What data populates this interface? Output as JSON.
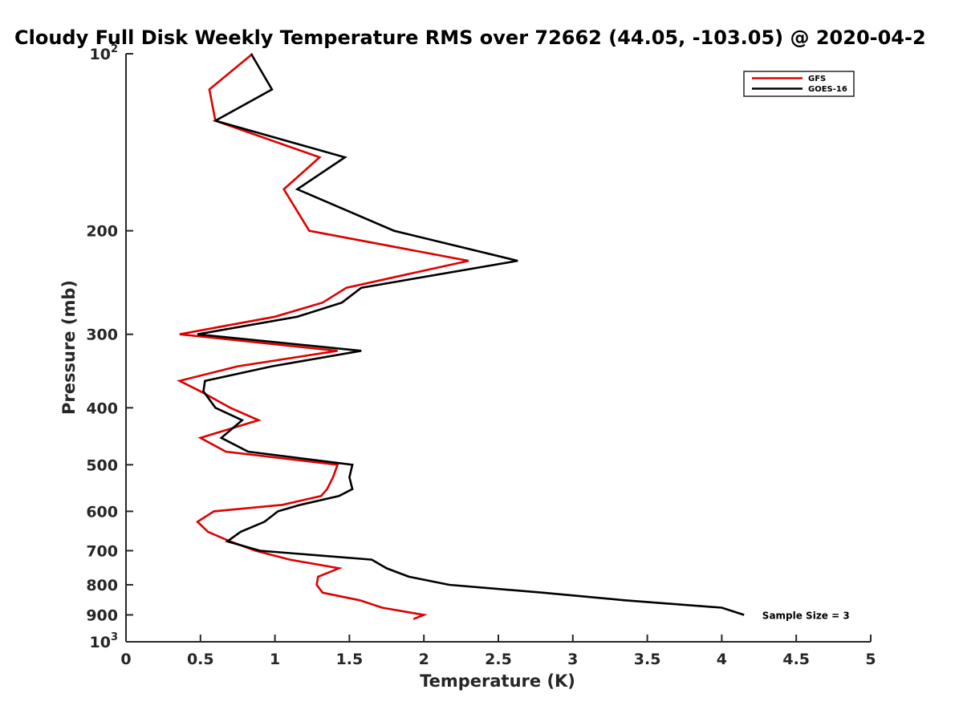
{
  "chart_data": {
    "type": "line",
    "title": "Cloudy Full Disk Weekly Temperature RMS over 72662 (44.05, -103.05) @ 2020-04-2",
    "xlabel": "Temperature (K)",
    "ylabel": "Pressure (mb)",
    "xlim": [
      0,
      5
    ],
    "ylim": [
      100,
      1000
    ],
    "y_scale": "log",
    "y_reversed": true,
    "grid": false,
    "x_ticks": [
      "0",
      "0.5",
      "1",
      "1.5",
      "2",
      "2.5",
      "3",
      "3.5",
      "4",
      "4.5",
      "5"
    ],
    "x_tick_values": [
      0,
      0.5,
      1,
      1.5,
      2,
      2.5,
      3,
      3.5,
      4,
      4.5,
      5
    ],
    "y_ticks": [
      {
        "value": 100,
        "base": "10",
        "exp": "2"
      },
      {
        "value": 200,
        "label": "200"
      },
      {
        "value": 300,
        "label": "300"
      },
      {
        "value": 400,
        "label": "400"
      },
      {
        "value": 500,
        "label": "500"
      },
      {
        "value": 600,
        "label": "600"
      },
      {
        "value": 700,
        "label": "700"
      },
      {
        "value": 800,
        "label": "800"
      },
      {
        "value": 900,
        "label": "900"
      },
      {
        "value": 1000,
        "base": "10",
        "exp": "3"
      }
    ],
    "legend_position": "top-right",
    "annotation": "Sample Size = 3",
    "annotation_anchor": {
      "x": 4.25,
      "y": 900
    },
    "series": [
      {
        "name": "GFS",
        "color": "#dd0000",
        "points": [
          [
            0.85,
            100
          ],
          [
            0.56,
            115
          ],
          [
            0.6,
            130
          ],
          [
            1.3,
            150
          ],
          [
            1.06,
            170
          ],
          [
            1.23,
            200
          ],
          [
            2.3,
            225
          ],
          [
            1.48,
            250
          ],
          [
            1.32,
            265
          ],
          [
            1.0,
            280
          ],
          [
            0.36,
            300
          ],
          [
            1.42,
            320
          ],
          [
            0.75,
            340
          ],
          [
            0.36,
            360
          ],
          [
            0.5,
            375
          ],
          [
            0.7,
            400
          ],
          [
            0.89,
            420
          ],
          [
            0.5,
            450
          ],
          [
            0.67,
            475
          ],
          [
            1.42,
            500
          ],
          [
            1.39,
            525
          ],
          [
            1.35,
            550
          ],
          [
            1.31,
            565
          ],
          [
            1.05,
            585
          ],
          [
            0.59,
            600
          ],
          [
            0.48,
            625
          ],
          [
            0.55,
            650
          ],
          [
            0.7,
            675
          ],
          [
            0.87,
            700
          ],
          [
            1.1,
            725
          ],
          [
            1.43,
            750
          ],
          [
            1.29,
            775
          ],
          [
            1.28,
            800
          ],
          [
            1.32,
            825
          ],
          [
            1.57,
            850
          ],
          [
            1.72,
            875
          ],
          [
            2.0,
            900
          ],
          [
            1.93,
            915
          ]
        ]
      },
      {
        "name": "GOES-16",
        "color": "#000000",
        "points": [
          [
            0.84,
            100
          ],
          [
            0.98,
            115
          ],
          [
            0.6,
            130
          ],
          [
            1.47,
            150
          ],
          [
            1.15,
            170
          ],
          [
            1.8,
            200
          ],
          [
            2.63,
            225
          ],
          [
            1.58,
            250
          ],
          [
            1.45,
            265
          ],
          [
            1.15,
            280
          ],
          [
            0.48,
            300
          ],
          [
            1.58,
            320
          ],
          [
            0.98,
            340
          ],
          [
            0.53,
            360
          ],
          [
            0.52,
            375
          ],
          [
            0.6,
            400
          ],
          [
            0.78,
            420
          ],
          [
            0.64,
            450
          ],
          [
            0.82,
            475
          ],
          [
            1.52,
            500
          ],
          [
            1.5,
            525
          ],
          [
            1.52,
            550
          ],
          [
            1.43,
            565
          ],
          [
            1.17,
            585
          ],
          [
            1.02,
            600
          ],
          [
            0.93,
            625
          ],
          [
            0.77,
            650
          ],
          [
            0.68,
            675
          ],
          [
            0.9,
            700
          ],
          [
            1.65,
            725
          ],
          [
            1.75,
            750
          ],
          [
            1.9,
            775
          ],
          [
            2.17,
            800
          ],
          [
            2.8,
            825
          ],
          [
            3.35,
            850
          ],
          [
            4.0,
            875
          ],
          [
            4.15,
            900
          ]
        ]
      }
    ]
  }
}
